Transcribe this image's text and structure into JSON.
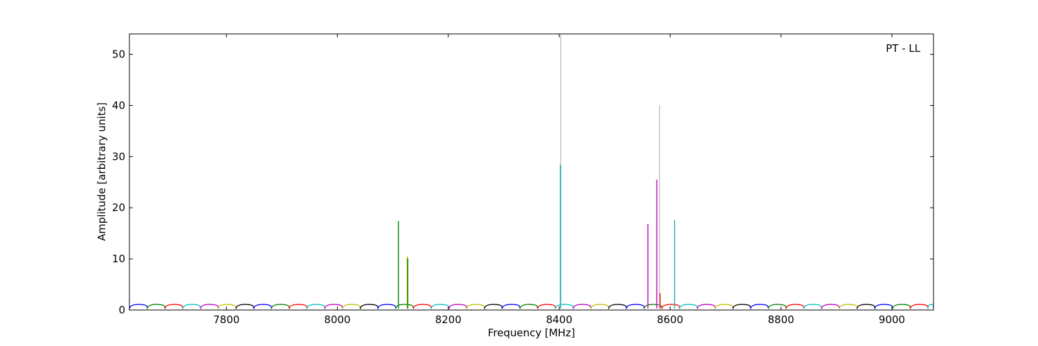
{
  "chart_data": {
    "type": "line",
    "title": "",
    "annotation": "PT - LL",
    "xlabel": "Frequency [MHz]",
    "ylabel": "Amplitude [arbitrary units]",
    "xlim": [
      7625,
      9075
    ],
    "ylim": [
      0,
      54
    ],
    "xticks": [
      7800,
      8000,
      8200,
      8400,
      8600,
      8800,
      9000
    ],
    "yticks": [
      0,
      10,
      20,
      30,
      40,
      50
    ],
    "grid": false,
    "legend": "none",
    "channel_width_mhz": 32,
    "channel_start_mhz": 7625,
    "baseline_amplitude": 1.1,
    "channel_colors": [
      "#0000ff",
      "#008000",
      "#ff0000",
      "#00bfbf",
      "#bf00bf",
      "#bfbf00",
      "#000000"
    ],
    "spikes": [
      {
        "x": 8110,
        "y": 17.4,
        "color": "#008000"
      },
      {
        "x": 8126,
        "y": 10.5,
        "color": "#bfbf00"
      },
      {
        "x": 8127,
        "y": 10.1,
        "color": "#008000"
      },
      {
        "x": 8403,
        "y": 53.9,
        "color": "#c0c0c0"
      },
      {
        "x": 8402,
        "y": 28.4,
        "color": "#00bfbf"
      },
      {
        "x": 8560,
        "y": 16.8,
        "color": "#bf00bf"
      },
      {
        "x": 8576,
        "y": 25.5,
        "color": "#bf00bf"
      },
      {
        "x": 8581,
        "y": 40.0,
        "color": "#c0c0c0"
      },
      {
        "x": 8582,
        "y": 3.3,
        "color": "#ff0000"
      },
      {
        "x": 8608,
        "y": 17.6,
        "color": "#20b2aa"
      }
    ]
  }
}
